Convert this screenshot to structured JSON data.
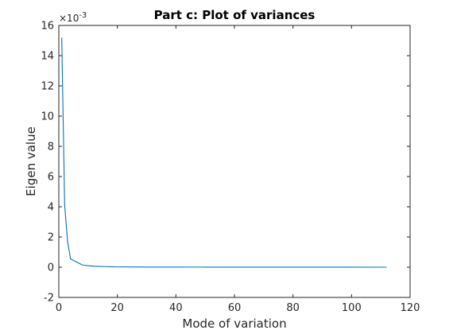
{
  "chart_data": {
    "type": "line",
    "title": "Part c: Plot of variances",
    "xlabel": "Mode of variation",
    "ylabel": "Eigen value",
    "y_exponent_label": "×10",
    "y_exponent_power": "-3",
    "xlim": [
      0,
      120
    ],
    "ylim": [
      -2,
      16
    ],
    "xticks": [
      0,
      20,
      40,
      60,
      80,
      100,
      120
    ],
    "yticks": [
      -2,
      0,
      2,
      4,
      6,
      8,
      10,
      12,
      14,
      16
    ],
    "grid": false,
    "box": true,
    "series": [
      {
        "color": "#0072BD",
        "x": [
          1,
          2,
          3,
          4,
          5,
          6,
          7,
          8,
          10,
          12,
          14,
          16,
          18,
          20,
          25,
          30,
          40,
          50,
          60,
          70,
          80,
          90,
          100,
          112
        ],
        "values": [
          15.2,
          4.1,
          1.7,
          0.55,
          0.45,
          0.35,
          0.25,
          0.15,
          0.1,
          0.07,
          0.05,
          0.04,
          0.03,
          0.02,
          0.015,
          0.01,
          0.008,
          0.006,
          0.005,
          0.004,
          0.003,
          0.002,
          0.001,
          0.0
        ]
      }
    ]
  }
}
